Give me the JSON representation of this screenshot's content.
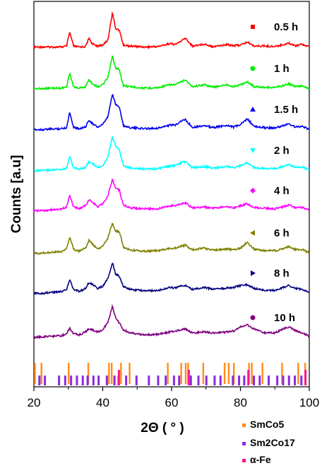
{
  "chart_data": {
    "type": "line",
    "title": "",
    "xlabel": "2Θ ( ° )",
    "ylabel": "Counts [a.u]",
    "xlim": [
      20,
      100
    ],
    "xticks": [
      20,
      40,
      60,
      80,
      100
    ],
    "x": [
      20,
      22,
      25,
      28,
      29.5,
      30.4,
      31.5,
      33,
      35,
      36,
      37,
      38.5,
      40,
      41.5,
      42.8,
      43.7,
      44.8,
      46,
      48,
      52,
      56,
      59.5,
      61,
      62.8,
      64,
      66,
      69.5,
      72,
      76.3,
      78,
      80,
      82,
      84,
      87,
      90,
      92.5,
      94,
      96,
      98,
      100
    ],
    "series": [
      {
        "name": "0.5 h",
        "color": "#ff0000",
        "marker": "square",
        "values": [
          0.1,
          0.1,
          0.1,
          0.1,
          0.2,
          1.6,
          0.2,
          0.1,
          0.15,
          1.0,
          0.4,
          0.2,
          0.3,
          0.8,
          3.6,
          2.0,
          1.8,
          0.3,
          0.2,
          0.1,
          0.15,
          0.45,
          0.35,
          0.7,
          1.0,
          0.2,
          0.4,
          0.15,
          0.35,
          0.25,
          0.3,
          0.6,
          0.2,
          0.2,
          0.15,
          0.35,
          0.5,
          0.25,
          0.4,
          0.1
        ]
      },
      {
        "name": "1 h",
        "color": "#00ee00",
        "marker": "circle",
        "values": [
          0.1,
          0.1,
          0.15,
          0.15,
          0.3,
          1.7,
          0.3,
          0.15,
          0.3,
          1.0,
          0.6,
          0.3,
          0.5,
          1.2,
          3.4,
          2.2,
          2.0,
          0.4,
          0.3,
          0.15,
          0.2,
          0.5,
          0.5,
          0.8,
          1.0,
          0.3,
          0.5,
          0.25,
          0.5,
          0.3,
          0.5,
          0.8,
          0.3,
          0.25,
          0.2,
          0.4,
          0.6,
          0.3,
          0.4,
          0.1
        ]
      },
      {
        "name": "1.5 h",
        "color": "#0000ee",
        "marker": "triangle-up",
        "values": [
          0.1,
          0.1,
          0.15,
          0.2,
          0.3,
          1.9,
          0.35,
          0.2,
          0.35,
          1.1,
          0.7,
          0.35,
          0.6,
          1.4,
          3.7,
          2.7,
          2.4,
          0.5,
          0.3,
          0.2,
          0.25,
          0.55,
          0.55,
          1.0,
          1.1,
          0.35,
          0.5,
          0.3,
          0.55,
          0.35,
          0.6,
          1.2,
          0.4,
          0.3,
          0.25,
          0.5,
          0.7,
          0.35,
          0.45,
          0.1
        ]
      },
      {
        "name": "2 h",
        "color": "#00ffff",
        "marker": "triangle-down",
        "values": [
          0.1,
          0.1,
          0.15,
          0.2,
          0.35,
          1.6,
          0.4,
          0.25,
          0.4,
          1.0,
          0.8,
          0.4,
          0.6,
          1.5,
          3.6,
          2.6,
          2.2,
          0.6,
          0.35,
          0.25,
          0.3,
          0.55,
          0.6,
          0.9,
          1.0,
          0.4,
          0.5,
          0.35,
          0.5,
          0.4,
          0.6,
          0.9,
          0.4,
          0.3,
          0.3,
          0.5,
          0.7,
          0.4,
          0.45,
          0.15
        ]
      },
      {
        "name": "4 h",
        "color": "#ff00ff",
        "marker": "diamond",
        "values": [
          0.1,
          0.1,
          0.2,
          0.25,
          0.5,
          1.7,
          0.5,
          0.3,
          0.6,
          1.2,
          1.0,
          0.5,
          0.8,
          1.6,
          3.3,
          2.4,
          2.2,
          0.7,
          0.4,
          0.3,
          0.3,
          0.6,
          0.6,
          0.8,
          0.9,
          0.4,
          0.5,
          0.35,
          0.5,
          0.4,
          0.6,
          0.8,
          0.45,
          0.35,
          0.3,
          0.5,
          0.7,
          0.4,
          0.45,
          0.15
        ]
      },
      {
        "name": "6 h",
        "color": "#808000",
        "marker": "triangle-left",
        "values": [
          0.1,
          0.1,
          0.2,
          0.25,
          0.5,
          1.8,
          0.5,
          0.3,
          0.6,
          1.4,
          1.0,
          0.5,
          0.8,
          1.6,
          3.2,
          2.3,
          2.3,
          0.7,
          0.4,
          0.3,
          0.35,
          0.6,
          0.6,
          0.8,
          0.9,
          0.45,
          0.6,
          0.4,
          0.5,
          0.45,
          0.6,
          1.2,
          0.5,
          0.35,
          0.35,
          0.55,
          0.75,
          0.45,
          0.45,
          0.15
        ]
      },
      {
        "name": "8 h",
        "color": "#000080",
        "marker": "triangle-right",
        "values": [
          0.1,
          0.1,
          0.2,
          0.3,
          0.5,
          1.5,
          0.5,
          0.3,
          0.6,
          1.2,
          1.0,
          0.6,
          0.8,
          1.6,
          3.2,
          2.1,
          1.8,
          0.8,
          0.5,
          0.35,
          0.4,
          0.7,
          0.65,
          0.85,
          0.9,
          0.5,
          0.7,
          0.5,
          0.65,
          0.7,
          0.9,
          1.0,
          0.6,
          0.4,
          0.4,
          0.7,
          0.9,
          0.6,
          0.5,
          0.2
        ]
      },
      {
        "name": "10 h",
        "color": "#800080",
        "marker": "circle",
        "values": [
          0.15,
          0.2,
          0.25,
          0.3,
          0.5,
          1.1,
          0.5,
          0.4,
          0.7,
          1.0,
          0.9,
          0.7,
          0.9,
          1.7,
          3.3,
          2.2,
          1.6,
          0.9,
          0.6,
          0.4,
          0.45,
          0.7,
          0.8,
          0.9,
          1.0,
          0.6,
          0.7,
          0.6,
          0.7,
          0.8,
          1.2,
          1.4,
          1.0,
          0.6,
          0.6,
          1.0,
          1.2,
          0.8,
          0.6,
          0.25
        ]
      }
    ],
    "reference_patterns": [
      {
        "name": "SmCo5",
        "color": "#ff8c1a",
        "positions": [
          20.3,
          22.2,
          30.1,
          35.8,
          41.8,
          42.6,
          45.3,
          47.8,
          58.9,
          62.8,
          64.1,
          64.8,
          69.2,
          75.4,
          76.6,
          78.1,
          82.5,
          83.3,
          86.4,
          92.1,
          96.8,
          98.8
        ]
      },
      {
        "name": "Sm2Co17",
        "color": "#8a2be2",
        "positions": [
          21.6,
          23.2,
          27.3,
          29.1,
          30.8,
          32.5,
          34.2,
          35.6,
          37.3,
          38.8,
          41.2,
          43.4,
          44.6,
          46.8,
          49.8,
          53.4,
          56.1,
          58.3,
          60.7,
          62.2,
          65.6,
          67.8,
          70.1,
          72.5,
          74.2,
          77.8,
          79.6,
          81.1,
          83.9,
          85.6,
          88.2,
          90.7,
          92.4,
          94.1,
          95.8,
          97.7
        ]
      },
      {
        "name": "α-Fe",
        "color": "#ff1493",
        "positions": [
          44.7,
          65.0,
          82.3,
          98.9
        ]
      }
    ]
  }
}
